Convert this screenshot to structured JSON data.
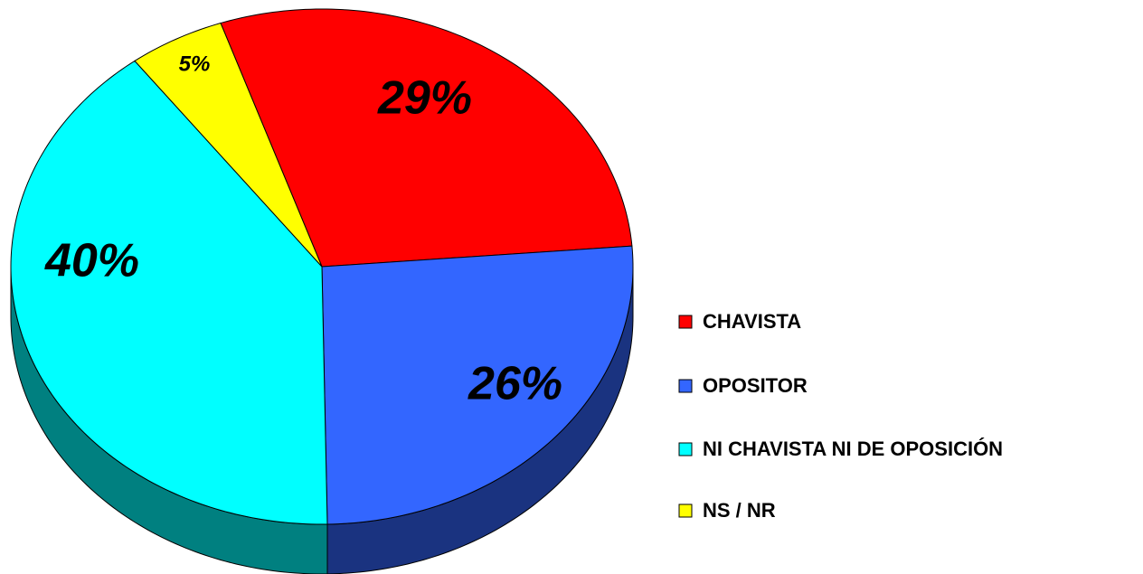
{
  "chart_data": {
    "type": "pie",
    "categories": [
      "CHAVISTA",
      "OPOSITOR",
      "NI CHAVISTA NI DE OPOSICIÓN",
      "NS / NR"
    ],
    "values": [
      29,
      26,
      40,
      5
    ],
    "value_labels": [
      "29%",
      "26%",
      "40%",
      "5%"
    ],
    "colors": [
      "#ff0000",
      "#3366ff",
      "#00ffff",
      "#ffff00"
    ],
    "legend": "right"
  }
}
